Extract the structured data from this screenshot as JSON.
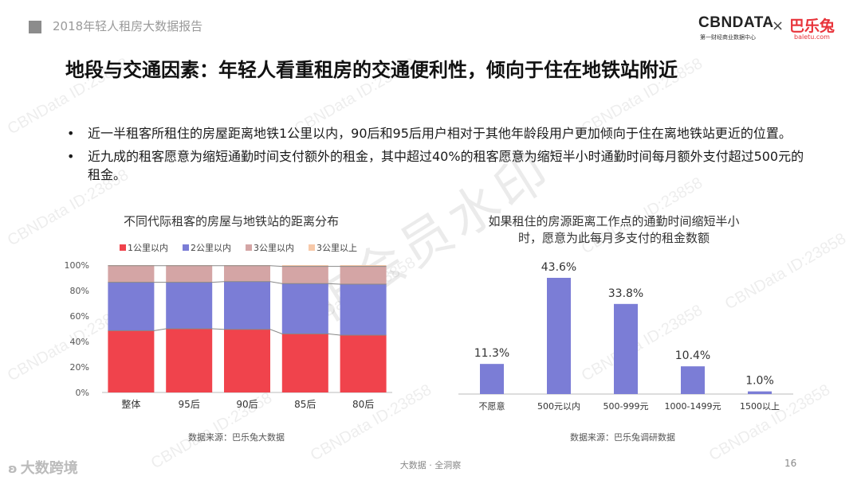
{
  "header": {
    "report_title": "2018年轻人租房大数据报告",
    "logo_cbn": "CBNDATA",
    "logo_cbn_sub": "第一财经商业数据中心",
    "logo_x": "×",
    "logo_partner": "巴乐兔",
    "logo_partner_sub": "baletu.com"
  },
  "page_title": "地段与交通因素：年轻人看重租房的交通便利性，倾向于住在地铁站附近",
  "bullets": [
    "近一半租客所租住的房屋距离地铁1公里以内，90后和95后用户相对于其他年龄段用户更加倾向于住在离地铁站更近的位置。",
    "近九成的租客愿意为缩短通勤时间支付额外的租金，其中超过40%的租客愿意为缩短半小时通勤时间每月额外支付超过500元的租金。"
  ],
  "bullet_dot": "•",
  "chart_data": [
    {
      "type": "bar",
      "stacked": true,
      "title": "不同代际租客的房屋与地铁站的距离分布",
      "categories": [
        "整体",
        "95后",
        "90后",
        "85后",
        "80后"
      ],
      "series": [
        {
          "name": "1公里以内",
          "color": "#f0434c",
          "values": [
            48.5,
            50,
            49.5,
            46,
            45
          ]
        },
        {
          "name": "2公里以内",
          "color": "#7b7dd6",
          "values": [
            38,
            36.5,
            37.5,
            39.5,
            40
          ]
        },
        {
          "name": "3公里以内",
          "color": "#d4a5a5",
          "values": [
            13,
            13,
            12.5,
            13.5,
            14
          ]
        },
        {
          "name": "3公里以上",
          "color": "#f7c9a9",
          "values": [
            0.5,
            0.5,
            0.5,
            1,
            1
          ]
        }
      ],
      "yticks": [
        "0%",
        "20%",
        "40%",
        "60%",
        "80%",
        "100%"
      ],
      "ylim": [
        0,
        100
      ],
      "legend_position": "top",
      "source": "数据来源：巴乐兔大数据"
    },
    {
      "type": "bar",
      "title": "如果租住的房源距离工作点的通勤时间缩短半小时，愿意为此每月多支付的租金数额",
      "title_lines": [
        "如果租住的房源距离工作点的通勤时间缩短半小",
        "时，愿意为此每月多支付的租金数额"
      ],
      "categories": [
        "不愿意",
        "500元以内",
        "500-999元",
        "1000-1499元",
        "1500以上"
      ],
      "values": [
        11.3,
        43.6,
        33.8,
        10.4,
        1.0
      ],
      "data_labels": [
        "11.3%",
        "43.6%",
        "33.8%",
        "10.4%",
        "1.0%"
      ],
      "color": "#7b7dd6",
      "ylim": [
        0,
        50
      ],
      "source": "数据来源：巴乐兔调研数据"
    }
  ],
  "footer": {
    "center": "大数据 · 全洞察",
    "page_number": "16",
    "brand": "大数跨境",
    "brand_icon": "ʚ"
  },
  "watermark": {
    "text": "CBNData ID:23858",
    "big": "非会员水印"
  }
}
